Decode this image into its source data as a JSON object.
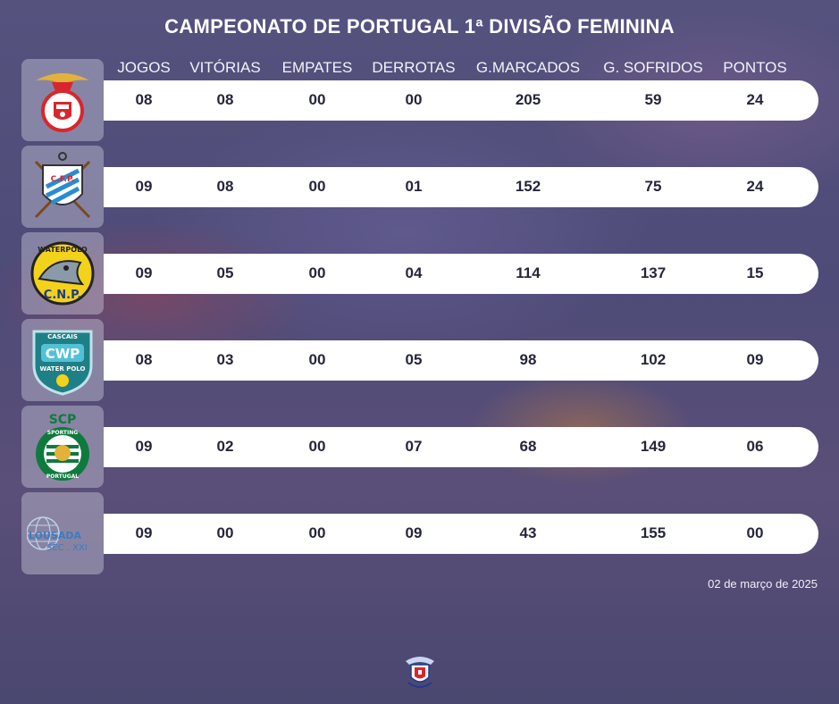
{
  "title": "CAMPEONATO DE PORTUGAL 1ª DIVISÃO FEMININA",
  "columns": [
    "JOGOS",
    "VITÓRIAS",
    "EMPATES",
    "DERROTAS",
    "G.MARCADOS",
    "G. SOFRIDOS",
    "PONTOS"
  ],
  "teams": [
    {
      "logo": "benfica-crest-icon",
      "logo_text": "",
      "stats": [
        "08",
        "08",
        "00",
        "00",
        "205",
        "59",
        "24"
      ]
    },
    {
      "logo": "cfp-anchor-crest-icon",
      "logo_text": "C.F.P.",
      "stats": [
        "09",
        "08",
        "00",
        "01",
        "152",
        "75",
        "24"
      ]
    },
    {
      "logo": "cnp-waterpolo-shark-icon",
      "logo_text": "WATERPOLO",
      "stats": [
        "09",
        "05",
        "00",
        "04",
        "114",
        "137",
        "15"
      ]
    },
    {
      "logo": "cascais-water-polo-shield-icon",
      "logo_text": "CWP",
      "stats": [
        "08",
        "03",
        "00",
        "05",
        "98",
        "102",
        "09"
      ]
    },
    {
      "logo": "sporting-lion-crest-icon",
      "logo_text": "SCP",
      "stats": [
        "09",
        "02",
        "00",
        "07",
        "68",
        "149",
        "06"
      ]
    },
    {
      "logo": "lousada-globe-icon",
      "logo_text": "LOUSADA SÉC. XXI",
      "stats": [
        "09",
        "00",
        "00",
        "09",
        "43",
        "155",
        "00"
      ]
    }
  ],
  "date": "02 de março de 2025",
  "footer_logo": "federation-crest-icon",
  "colors": {
    "background": "#4f4d78",
    "bar": "#ffffff",
    "text_dark": "#26263a",
    "benfica_red": "#d8262e",
    "sporting_green": "#0f7a3e",
    "cascais_teal": "#1f7f86",
    "cfp_blue": "#2a8ccf",
    "cnp_yellow": "#f2d21b",
    "lousada_blue": "#3d7cc0"
  }
}
